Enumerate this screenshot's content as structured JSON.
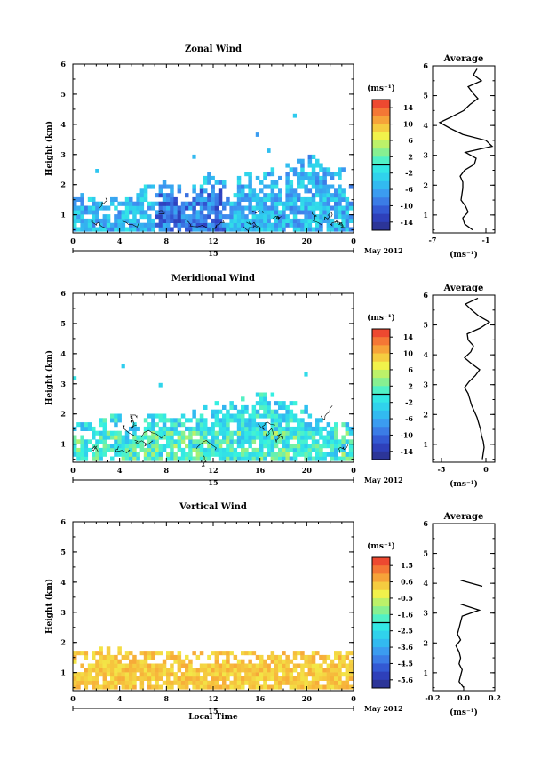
{
  "chart_data": [
    {
      "type": "heatmap",
      "title": "Zonal Wind",
      "ylabel": "Height (km)",
      "ylim": [
        0.4,
        6
      ],
      "yticks": [
        "1",
        "2",
        "3",
        "4",
        "5",
        "6"
      ],
      "xlim": [
        0,
        24
      ],
      "xticks": [
        "0",
        "4",
        "8",
        "12",
        "16",
        "20",
        "0"
      ],
      "date_day": "15",
      "date_label": "May 2012",
      "colorbar": {
        "unit": "(ms⁻¹)",
        "ticks": [
          "14",
          "10",
          "6",
          "2",
          "-2",
          "-6",
          "-10",
          "-14"
        ],
        "min": -16,
        "max": 16
      },
      "coverage_top_km": [
        1.6,
        1.5,
        1.4,
        1.5,
        1.6,
        1.8,
        1.9,
        2.1,
        1.9,
        1.7,
        2.0,
        2.3,
        2.1,
        1.8,
        2.4,
        2.2,
        2.5,
        2.2,
        2.6,
        2.8,
        2.9,
        2.7,
        2.5,
        1.9,
        1.6
      ],
      "typical_value": -5,
      "average_profile": {
        "title": "Average",
        "xlim": [
          -7,
          0
        ],
        "xticks": [
          "-7",
          "-1"
        ],
        "xlabel": "(ms⁻¹)",
        "height": [
          0.5,
          0.7,
          0.9,
          1.1,
          1.3,
          1.5,
          1.7,
          1.9,
          2.1,
          2.3,
          2.5,
          2.7,
          2.9,
          3.1,
          3.3,
          3.5,
          3.7,
          3.9,
          4.1,
          4.3,
          4.5,
          4.7,
          4.9,
          5.1,
          5.3,
          5.5,
          5.7,
          5.9
        ],
        "values": [
          -2.5,
          -3.4,
          -3.6,
          -3.0,
          -3.3,
          -3.8,
          -3.7,
          -3.6,
          -3.6,
          -3.9,
          -3.4,
          -2.3,
          -2.1,
          -3.3,
          -0.3,
          -1.0,
          -3.6,
          -5.0,
          -6.2,
          -4.8,
          -3.5,
          -2.8,
          -1.9,
          -2.5,
          -3.0,
          -1.5,
          -2.4,
          -2.0
        ]
      }
    },
    {
      "type": "heatmap",
      "title": "Meridional Wind",
      "ylabel": "Height (km)",
      "ylim": [
        0.4,
        6
      ],
      "yticks": [
        "1",
        "2",
        "3",
        "4",
        "5",
        "6"
      ],
      "xlim": [
        0,
        24
      ],
      "xticks": [
        "0",
        "4",
        "8",
        "12",
        "16",
        "20",
        "0"
      ],
      "date_day": "15",
      "date_label": "May 2012",
      "colorbar": {
        "unit": "(ms⁻¹)",
        "ticks": [
          "14",
          "10",
          "6",
          "2",
          "-2",
          "-6",
          "-10",
          "-14"
        ],
        "min": -16,
        "max": 16
      },
      "coverage_top_km": [
        1.6,
        1.7,
        1.8,
        1.9,
        1.6,
        1.7,
        1.9,
        2.0,
        1.8,
        1.9,
        2.1,
        2.2,
        2.3,
        2.4,
        2.5,
        2.6,
        2.7,
        2.6,
        2.4,
        2.2,
        2.0,
        1.8,
        1.7,
        1.6,
        1.5
      ],
      "typical_value": -2,
      "average_profile": {
        "title": "Average",
        "xlim": [
          -6,
          1
        ],
        "xticks": [
          "-5",
          "0"
        ],
        "xlabel": "(ms⁻¹)",
        "height": [
          0.5,
          0.7,
          0.9,
          1.1,
          1.3,
          1.5,
          1.7,
          1.9,
          2.1,
          2.3,
          2.5,
          2.7,
          2.9,
          3.1,
          3.3,
          3.5,
          3.7,
          3.9,
          4.1,
          4.3,
          4.5,
          4.7,
          4.9,
          5.1,
          5.3,
          5.5,
          5.7,
          5.9
        ],
        "values": [
          -0.4,
          -0.3,
          -0.2,
          -0.3,
          -0.5,
          -0.6,
          -0.8,
          -1.0,
          -1.3,
          -1.6,
          -1.8,
          -2.0,
          -2.4,
          -1.9,
          -1.2,
          -0.7,
          -1.6,
          -2.4,
          -1.7,
          -1.4,
          -2.0,
          -2.1,
          -0.6,
          0.4,
          -0.8,
          -1.6,
          -2.3,
          -0.9
        ]
      }
    },
    {
      "type": "heatmap",
      "title": "Vertical Wind",
      "ylabel": "Height (km)",
      "xlabel": "Local Time",
      "ylim": [
        0.4,
        6
      ],
      "yticks": [
        "1",
        "2",
        "3",
        "4",
        "5",
        "6"
      ],
      "xlim": [
        0,
        24
      ],
      "xticks": [
        "0",
        "4",
        "8",
        "12",
        "16",
        "20",
        "0"
      ],
      "date_day": "15",
      "date_label": "May 2012",
      "colorbar": {
        "unit": "(ms⁻¹)",
        "ticks": [
          "1.5",
          "0.6",
          "-0.5",
          "-1.6",
          "-2.5",
          "-3.6",
          "-4.5",
          "-5.6"
        ],
        "min": -6,
        "max": 2
      },
      "coverage_top_km": [
        1.6,
        1.7,
        1.8,
        1.8,
        1.7,
        1.7,
        1.7,
        1.7,
        1.6,
        1.6,
        1.7,
        1.7,
        1.7,
        1.7,
        1.7,
        1.7,
        1.7,
        1.7,
        1.7,
        1.7,
        1.7,
        1.7,
        1.7,
        1.7,
        1.6
      ],
      "typical_value": 0.3,
      "average_profile": {
        "title": "Average",
        "xlim": [
          -0.2,
          0.2
        ],
        "xticks": [
          "-0.2",
          "0.0",
          "0.2"
        ],
        "xlabel": "(ms⁻¹)",
        "height": [
          0.5,
          0.7,
          0.9,
          1.1,
          1.3,
          1.5,
          1.7,
          1.9,
          2.1,
          2.3,
          2.5,
          2.7,
          2.9,
          3.1,
          3.3,
          3.5,
          3.7,
          3.9,
          4.1
        ],
        "values": [
          0.0,
          -0.03,
          -0.02,
          -0.01,
          -0.03,
          -0.02,
          -0.03,
          -0.05,
          -0.02,
          -0.04,
          -0.03,
          -0.02,
          -0.01,
          0.1,
          -0.02,
          null,
          null,
          0.12,
          -0.02
        ]
      }
    }
  ]
}
